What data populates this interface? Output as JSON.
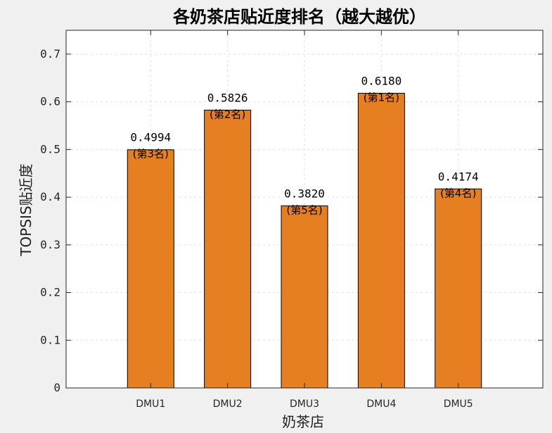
{
  "chart_data": {
    "type": "bar",
    "title": "各奶茶店贴近度排名（越大越优）",
    "xlabel": "奶茶店",
    "ylabel": "TOPSIS贴近度",
    "categories": [
      "DMU1",
      "DMU2",
      "DMU3",
      "DMU4",
      "DMU5"
    ],
    "values": [
      0.4994,
      0.5826,
      0.382,
      0.618,
      0.4174
    ],
    "value_labels": [
      "0.4994",
      "0.5826",
      "0.3820",
      "0.6180",
      "0.4174"
    ],
    "rank_labels": [
      "(第3名)",
      "(第2名)",
      "(第5名)",
      "(第1名)",
      "(第4名)"
    ],
    "ylim": [
      0,
      0.75
    ],
    "yticks": [
      0,
      0.1,
      0.2,
      0.3,
      0.4,
      0.5,
      0.6,
      0.7
    ],
    "ytick_labels": [
      "0",
      "0.1",
      "0.2",
      "0.3",
      "0.4",
      "0.5",
      "0.6",
      "0.7"
    ],
    "grid": true,
    "bar_color": "#e67e22",
    "background": "#f0f0f0",
    "axes_background": "#ffffff"
  }
}
